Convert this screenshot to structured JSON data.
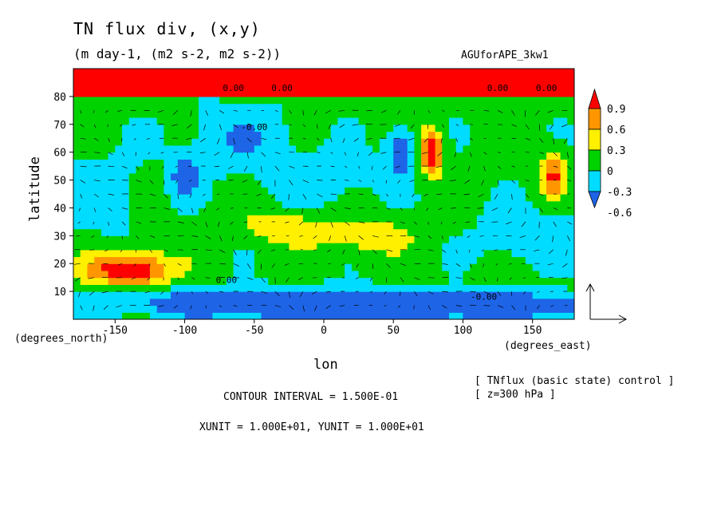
{
  "figure": {
    "title": "TN flux div, (x,y)",
    "subtitle": "(m day-1, (m2 s-2, m2 s-2))",
    "run_name": "AGUforAPE_3kw1",
    "contour_interval": "CONTOUR INTERVAL = 1.500E-01",
    "units_line": "XUNIT = 1.000E+01, YUNIT = 1.000E+01",
    "info_line1": "[ TNflux (basic state) control ]",
    "info_line2": "[ z=300 hPa ]"
  },
  "chart_data": {
    "type": "heatmap",
    "title": "TN flux div, (x,y)",
    "subtitle": "(m day-1, (m2 s-2, m2 s-2))",
    "xlabel": "lon",
    "ylabel": "latitude",
    "x_unit_label": "(degrees_east)",
    "y_unit_label": "(degrees_north)",
    "xlim": [
      -180,
      180
    ],
    "ylim": [
      0,
      90
    ],
    "x_ticks": [
      -150,
      -100,
      -50,
      0,
      50,
      100,
      150
    ],
    "x_tick_labels": [
      "-150",
      "-100",
      "-50",
      "0",
      "50",
      "100",
      "150"
    ],
    "y_ticks": [
      10,
      20,
      30,
      40,
      50,
      60,
      70,
      80
    ],
    "y_tick_labels": [
      "10",
      "20",
      "30",
      "40",
      "50",
      "60",
      "70",
      "80"
    ],
    "colorbar": {
      "levels": [
        -0.6,
        -0.3,
        0,
        0.3,
        0.6,
        0.9
      ],
      "labels": [
        "-0.6",
        "-0.3",
        "0",
        "0.3",
        "0.6",
        "0.9"
      ],
      "colors": [
        "#1e64e6",
        "#00dcff",
        "#00d200",
        "#fff000",
        "#ff9600",
        "#ff0000"
      ]
    },
    "contour_labels": [
      "0.00",
      "0.00",
      "-0.00",
      "0.00",
      "0.00",
      "0.00",
      "-0.00"
    ],
    "vector_overlay": true,
    "contour_interval": 0.15
  }
}
